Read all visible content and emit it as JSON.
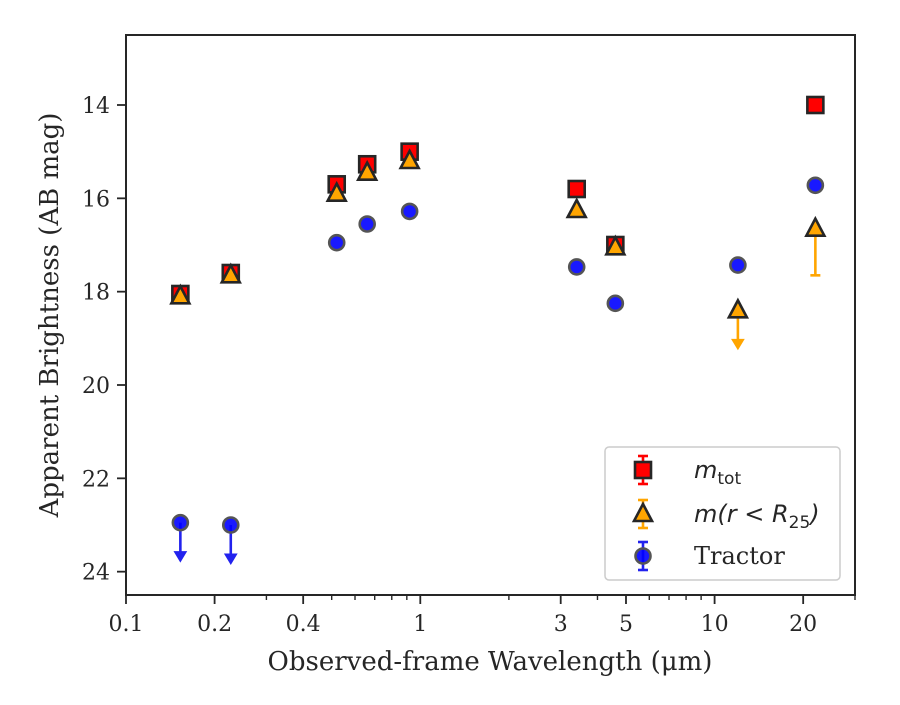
{
  "chart_data": {
    "type": "scatter",
    "xlabel": "Observed-frame Wavelength (μm)",
    "ylabel": "Apparent Brightness (AB mag)",
    "x_scale": "log",
    "xlim": [
      0.1,
      30
    ],
    "ylim": [
      24.5,
      12.5
    ],
    "y_inverted": true,
    "x_ticks": [
      {
        "value": 0.1,
        "label": "0.1"
      },
      {
        "value": 0.2,
        "label": "0.2"
      },
      {
        "value": 0.4,
        "label": "0.4"
      },
      {
        "value": 1,
        "label": "1"
      },
      {
        "value": 3,
        "label": "3"
      },
      {
        "value": 5,
        "label": "5"
      },
      {
        "value": 10,
        "label": "10"
      },
      {
        "value": 20,
        "label": "20"
      }
    ],
    "y_ticks": [
      {
        "value": 14,
        "label": "14"
      },
      {
        "value": 16,
        "label": "16"
      },
      {
        "value": 18,
        "label": "18"
      },
      {
        "value": 20,
        "label": "20"
      },
      {
        "value": 22,
        "label": "22"
      },
      {
        "value": 24,
        "label": "24"
      }
    ],
    "grid": false,
    "legend_position": "lower-right",
    "series": [
      {
        "name": "m_tot",
        "legend_main": "m",
        "legend_sub": "tot",
        "marker": "square",
        "color": "#ff0000",
        "points": [
          {
            "x": 0.153,
            "y": 18.05
          },
          {
            "x": 0.227,
            "y": 17.6
          },
          {
            "x": 0.52,
            "y": 15.7
          },
          {
            "x": 0.66,
            "y": 15.27
          },
          {
            "x": 0.92,
            "y": 15.0
          },
          {
            "x": 3.4,
            "y": 15.8
          },
          {
            "x": 4.6,
            "y": 17.0
          },
          {
            "x": 22.0,
            "y": 14.0
          }
        ]
      },
      {
        "name": "m(r < R25)",
        "legend_main": "m(r < R",
        "legend_sub": "25",
        "legend_tail": ")",
        "marker": "triangle",
        "color": "#ffa500",
        "points": [
          {
            "x": 0.153,
            "y": 18.1
          },
          {
            "x": 0.227,
            "y": 17.65
          },
          {
            "x": 0.52,
            "y": 15.9
          },
          {
            "x": 0.66,
            "y": 15.45
          },
          {
            "x": 0.92,
            "y": 15.2
          },
          {
            "x": 3.4,
            "y": 16.25
          },
          {
            "x": 4.6,
            "y": 17.05
          },
          {
            "x": 12.0,
            "y": 18.4,
            "upper_limit": true
          },
          {
            "x": 22.0,
            "y": 16.65,
            "err_lower": 1.0
          }
        ]
      },
      {
        "name": "Tractor",
        "legend_main": "Tractor",
        "marker": "circle",
        "color": "#0000ff",
        "points": [
          {
            "x": 0.153,
            "y": 22.95,
            "upper_limit": true
          },
          {
            "x": 0.227,
            "y": 23.0,
            "upper_limit": true
          },
          {
            "x": 0.52,
            "y": 16.95
          },
          {
            "x": 0.66,
            "y": 16.55
          },
          {
            "x": 0.92,
            "y": 16.28
          },
          {
            "x": 3.4,
            "y": 17.47
          },
          {
            "x": 4.6,
            "y": 18.25
          },
          {
            "x": 12.0,
            "y": 17.43
          },
          {
            "x": 22.0,
            "y": 15.72
          }
        ]
      }
    ]
  }
}
